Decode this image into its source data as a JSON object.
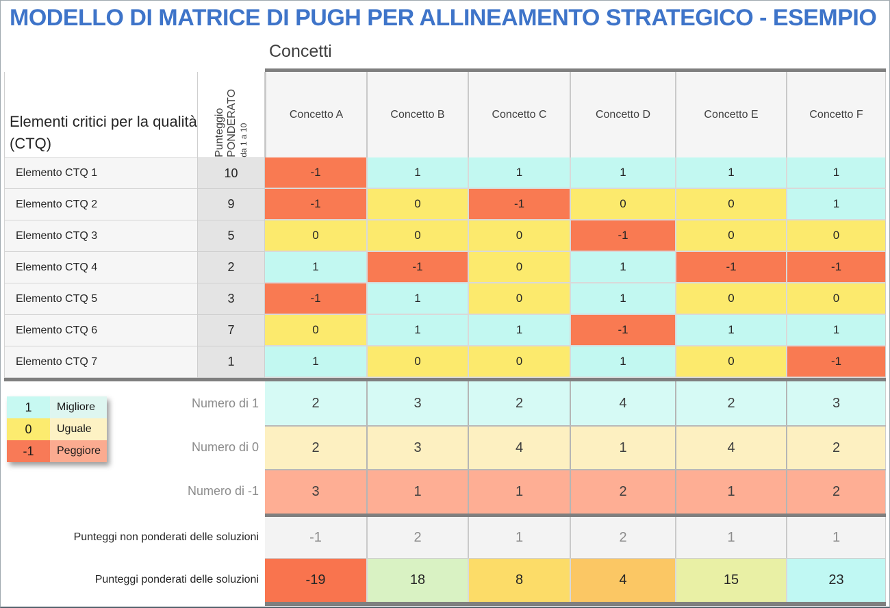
{
  "title": "MODELLO DI MATRICE DI PUGH PER ALLINEAMENTO STRATEGICO - ESEMPIO",
  "accent": {
    "title_color": "#3e74c9"
  },
  "table": {
    "group_header": "Concetti",
    "row_header": "Elementi critici per la qualità (CTQ)",
    "weight_header": {
      "line1": "Punteggio",
      "line2": "PONDERATO",
      "line3": "da 1 a 10"
    },
    "columns": [
      "Concetto A",
      "Concetto B",
      "Concetto C",
      "Concetto D",
      "Concetto E",
      "Concetto F"
    ],
    "rows": [
      {
        "label": "Elemento CTQ 1",
        "weight": "10",
        "values": [
          "-1",
          "1",
          "1",
          "1",
          "1",
          "1"
        ]
      },
      {
        "label": "Elemento CTQ 2",
        "weight": "9",
        "values": [
          "-1",
          "0",
          "-1",
          "0",
          "0",
          "1"
        ]
      },
      {
        "label": "Elemento CTQ 3",
        "weight": "5",
        "values": [
          "0",
          "0",
          "0",
          "-1",
          "0",
          "0"
        ]
      },
      {
        "label": "Elemento CTQ 4",
        "weight": "2",
        "values": [
          "1",
          "-1",
          "0",
          "1",
          "-1",
          "-1"
        ]
      },
      {
        "label": "Elemento CTQ 5",
        "weight": "3",
        "values": [
          "-1",
          "1",
          "0",
          "1",
          "0",
          "0"
        ]
      },
      {
        "label": "Elemento CTQ 6",
        "weight": "7",
        "values": [
          "0",
          "1",
          "1",
          "-1",
          "1",
          "1"
        ]
      },
      {
        "label": "Elemento CTQ 7",
        "weight": "1",
        "values": [
          "1",
          "0",
          "0",
          "1",
          "0",
          "-1"
        ]
      }
    ],
    "summary": [
      {
        "label": "Numero di 1",
        "bg": "#d6faf5",
        "values": [
          "2",
          "3",
          "2",
          "4",
          "2",
          "3"
        ]
      },
      {
        "label": "Numero di 0",
        "bg": "#fdf0c1",
        "values": [
          "2",
          "3",
          "4",
          "1",
          "4",
          "2"
        ]
      },
      {
        "label": "Numero di -1",
        "bg": "#feae94",
        "values": [
          "3",
          "1",
          "1",
          "2",
          "1",
          "2"
        ]
      }
    ],
    "unweighted": {
      "label": "Punteggi non ponderati delle soluzioni",
      "values": [
        "-1",
        "2",
        "1",
        "2",
        "1",
        "1"
      ]
    },
    "weighted": {
      "label": "Punteggi ponderati delle soluzioni",
      "values": [
        "-19",
        "18",
        "8",
        "4",
        "15",
        "23"
      ],
      "colors": [
        "#f9744e",
        "#d9f2c3",
        "#fcdc68",
        "#fbc764",
        "#e9f0a5",
        "#c0f8f3"
      ]
    }
  },
  "value_colors": {
    "1": "#c2f8f1",
    "0": "#fcea6d",
    "-1": "#f97a52"
  },
  "legend": {
    "items": [
      {
        "value": "1",
        "label": "Migliore",
        "value_bg": "#c7f9f2",
        "label_bg": "#def6f0"
      },
      {
        "value": "0",
        "label": "Uguale",
        "value_bg": "#fceb6f",
        "label_bg": "#fdf2c4"
      },
      {
        "value": "-1",
        "label": "Peggiore",
        "value_bg": "#f87a57",
        "label_bg": "#fbab90"
      }
    ]
  }
}
